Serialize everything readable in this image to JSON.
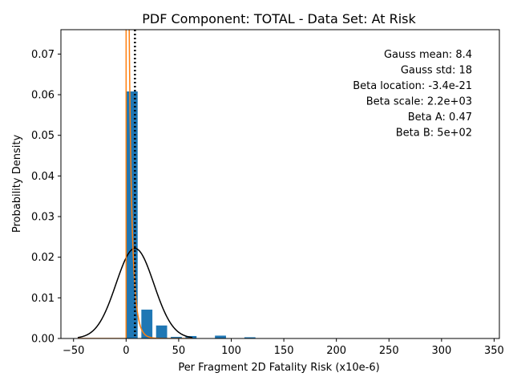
{
  "chart_data": {
    "type": "bar",
    "title": "PDF Component: TOTAL - Data Set: At Risk",
    "xlabel": "Per Fragment 2D Fatality Risk (x10e-6)",
    "ylabel": "Probability Density",
    "xlim": [
      -62,
      355
    ],
    "ylim": [
      0,
      0.076
    ],
    "x_ticks": [
      -50,
      0,
      50,
      100,
      150,
      200,
      250,
      300,
      350
    ],
    "y_ticks": [
      0.0,
      0.01,
      0.02,
      0.03,
      0.04,
      0.05,
      0.06,
      0.07
    ],
    "x_tick_labels": [
      "−50",
      "0",
      "50",
      "100",
      "150",
      "200",
      "250",
      "300",
      "350"
    ],
    "y_tick_labels": [
      "0.00",
      "0.01",
      "0.02",
      "0.03",
      "0.04",
      "0.05",
      "0.06",
      "0.07"
    ],
    "grid": false,
    "histogram": {
      "color": "#1f77b4",
      "bars": [
        {
          "left": 0.5,
          "right": 11.0,
          "value": 0.0608
        },
        {
          "left": 14.5,
          "right": 25.0,
          "value": 0.0071
        },
        {
          "left": 28.5,
          "right": 39.0,
          "value": 0.0032
        },
        {
          "left": 42.5,
          "right": 53.0,
          "value": 0.0004
        },
        {
          "left": 56.5,
          "right": 67.0,
          "value": 0.0006
        },
        {
          "left": 84.5,
          "right": 95.0,
          "value": 0.0007
        },
        {
          "left": 112.5,
          "right": 123.0,
          "value": 0.0003
        },
        {
          "left": 196.5,
          "right": 207.0,
          "value": 0.0001
        }
      ]
    },
    "gauss_curve": {
      "mean": 8.4,
      "std": 18,
      "x_range": [
        -46,
        63
      ],
      "color": "#000000"
    },
    "beta_curve": {
      "loc": 0,
      "scale": 2200,
      "a": 0.47,
      "b": 500,
      "x_range": [
        -46,
        63
      ],
      "color": "#ff7f0e"
    },
    "mean_line": {
      "x": 8.4,
      "color": "#000000",
      "style": "dotted"
    },
    "annotations": [
      "Gauss mean: 8.4",
      "Gauss std: 18",
      "Beta location: -3.4e-21",
      "Beta scale: 2.2e+03",
      "Beta A: 0.47",
      "Beta B: 5e+02"
    ]
  }
}
